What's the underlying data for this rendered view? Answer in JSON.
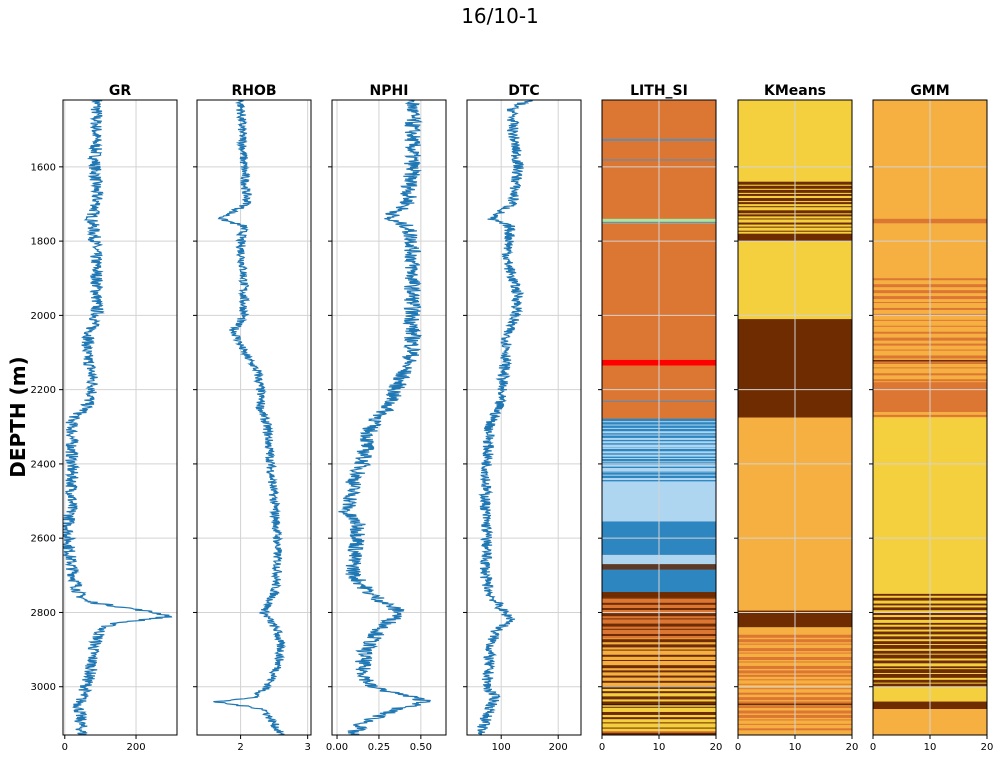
{
  "figure": {
    "title": "16/10-1",
    "ylabel": "DEPTH (m)"
  },
  "chart_data": {
    "type": "well-log",
    "title": "16/10-1",
    "ylabel": "DEPTH (m)",
    "ylim": [
      3130,
      1420
    ],
    "yticks": [
      1600,
      1800,
      2000,
      2200,
      2400,
      2600,
      2800,
      3000
    ],
    "grid": true,
    "curve_color": "#1f77b4",
    "tracks": [
      {
        "kind": "curve",
        "title": "GR",
        "xlim": [
          -5,
          315
        ],
        "xticks": [
          0,
          200
        ],
        "xtick_labels": [
          "0",
          "200"
        ],
        "profile": [
          [
            1420,
            90
          ],
          [
            1500,
            88
          ],
          [
            1600,
            85
          ],
          [
            1700,
            90
          ],
          [
            1740,
            75
          ],
          [
            1760,
            80
          ],
          [
            1800,
            85
          ],
          [
            1900,
            90
          ],
          [
            2000,
            90
          ],
          [
            2050,
            70
          ],
          [
            2100,
            60
          ],
          [
            2150,
            75
          ],
          [
            2200,
            80
          ],
          [
            2250,
            60
          ],
          [
            2280,
            20
          ],
          [
            2300,
            20
          ],
          [
            2400,
            20
          ],
          [
            2500,
            20
          ],
          [
            2540,
            15
          ],
          [
            2560,
            10
          ],
          [
            2600,
            10
          ],
          [
            2650,
            15
          ],
          [
            2700,
            25
          ],
          [
            2750,
            40
          ],
          [
            2770,
            60
          ],
          [
            2790,
            190
          ],
          [
            2800,
            250
          ],
          [
            2810,
            300
          ],
          [
            2820,
            220
          ],
          [
            2830,
            130
          ],
          [
            2850,
            100
          ],
          [
            2900,
            80
          ],
          [
            2950,
            75
          ],
          [
            3000,
            60
          ],
          [
            3050,
            40
          ],
          [
            3100,
            45
          ],
          [
            3130,
            50
          ]
        ],
        "noise": 18
      },
      {
        "kind": "curve",
        "title": "RHOB",
        "xlim": [
          1.35,
          3.05
        ],
        "xticks": [
          2,
          3
        ],
        "xtick_labels": [
          "2",
          "3"
        ],
        "profile": [
          [
            1420,
            2.0
          ],
          [
            1600,
            2.05
          ],
          [
            1700,
            2.1
          ],
          [
            1740,
            1.7
          ],
          [
            1760,
            2.05
          ],
          [
            1800,
            2.0
          ],
          [
            1900,
            2.05
          ],
          [
            2000,
            2.05
          ],
          [
            2040,
            1.9
          ],
          [
            2100,
            2.05
          ],
          [
            2150,
            2.25
          ],
          [
            2200,
            2.3
          ],
          [
            2250,
            2.3
          ],
          [
            2300,
            2.4
          ],
          [
            2400,
            2.45
          ],
          [
            2500,
            2.5
          ],
          [
            2600,
            2.55
          ],
          [
            2700,
            2.55
          ],
          [
            2750,
            2.5
          ],
          [
            2800,
            2.35
          ],
          [
            2850,
            2.55
          ],
          [
            2900,
            2.6
          ],
          [
            2950,
            2.55
          ],
          [
            3000,
            2.4
          ],
          [
            3030,
            2.2
          ],
          [
            3040,
            1.6
          ],
          [
            3060,
            2.35
          ],
          [
            3100,
            2.5
          ],
          [
            3130,
            2.6
          ]
        ],
        "noise": 0.07
      },
      {
        "kind": "curve",
        "title": "NPHI",
        "xlim": [
          -0.03,
          0.65
        ],
        "xticks": [
          0.0,
          0.25,
          0.5
        ],
        "xtick_labels": [
          "0.00",
          "0.25",
          "0.50"
        ],
        "profile": [
          [
            1420,
            0.45
          ],
          [
            1600,
            0.45
          ],
          [
            1700,
            0.42
          ],
          [
            1740,
            0.3
          ],
          [
            1760,
            0.42
          ],
          [
            1800,
            0.45
          ],
          [
            1900,
            0.45
          ],
          [
            2000,
            0.45
          ],
          [
            2100,
            0.45
          ],
          [
            2150,
            0.4
          ],
          [
            2200,
            0.35
          ],
          [
            2250,
            0.3
          ],
          [
            2300,
            0.2
          ],
          [
            2400,
            0.15
          ],
          [
            2450,
            0.1
          ],
          [
            2500,
            0.08
          ],
          [
            2530,
            0.05
          ],
          [
            2560,
            0.12
          ],
          [
            2600,
            0.13
          ],
          [
            2650,
            0.1
          ],
          [
            2700,
            0.1
          ],
          [
            2750,
            0.2
          ],
          [
            2800,
            0.38
          ],
          [
            2830,
            0.3
          ],
          [
            2850,
            0.25
          ],
          [
            2900,
            0.17
          ],
          [
            2950,
            0.15
          ],
          [
            3000,
            0.2
          ],
          [
            3040,
            0.55
          ],
          [
            3060,
            0.35
          ],
          [
            3100,
            0.15
          ],
          [
            3130,
            0.08
          ]
        ],
        "noise": 0.05
      },
      {
        "kind": "curve",
        "title": "DTC",
        "xlim": [
          40,
          240
        ],
        "xticks": [
          100,
          200
        ],
        "xtick_labels": [
          "100",
          "200"
        ],
        "profile": [
          [
            1420,
            150
          ],
          [
            1440,
            120
          ],
          [
            1500,
            120
          ],
          [
            1600,
            130
          ],
          [
            1700,
            120
          ],
          [
            1740,
            80
          ],
          [
            1760,
            115
          ],
          [
            1800,
            115
          ],
          [
            1850,
            110
          ],
          [
            1900,
            120
          ],
          [
            1950,
            130
          ],
          [
            2000,
            125
          ],
          [
            2050,
            110
          ],
          [
            2100,
            110
          ],
          [
            2150,
            105
          ],
          [
            2200,
            100
          ],
          [
            2250,
            95
          ],
          [
            2280,
            85
          ],
          [
            2300,
            80
          ],
          [
            2400,
            75
          ],
          [
            2500,
            72
          ],
          [
            2600,
            75
          ],
          [
            2700,
            72
          ],
          [
            2750,
            80
          ],
          [
            2800,
            105
          ],
          [
            2820,
            120
          ],
          [
            2850,
            90
          ],
          [
            2900,
            80
          ],
          [
            3000,
            75
          ],
          [
            3030,
            90
          ],
          [
            3060,
            80
          ],
          [
            3100,
            70
          ],
          [
            3130,
            60
          ]
        ],
        "noise": 10
      },
      {
        "kind": "facies",
        "title": "LITH_SI",
        "xlim": [
          0,
          20
        ],
        "xticks": [
          0,
          10,
          20
        ],
        "xtick_labels": [
          "0",
          "10",
          "20"
        ],
        "background": "#dc7633",
        "bands": [
          [
            1525,
            1530,
            "#5b8db8"
          ],
          [
            1580,
            1583,
            "#5b8db8"
          ],
          [
            1740,
            1752,
            "#a8e6a1"
          ],
          [
            1748,
            1751,
            "#5b8db8"
          ],
          [
            2120,
            2135,
            "#ff0000"
          ],
          [
            2230,
            2233,
            "#5b8db8"
          ],
          [
            2278,
            2285,
            "#2e86c1"
          ],
          [
            2285,
            2450,
            "#2e86c1"
          ],
          [
            2450,
            2555,
            "#aed6f1"
          ],
          [
            2555,
            2645,
            "#2e86c1"
          ],
          [
            2645,
            2670,
            "#aed6f1"
          ],
          [
            2670,
            2685,
            "#5b3a29"
          ],
          [
            2685,
            2745,
            "#2e86c1"
          ],
          [
            2745,
            2760,
            "#6e2c00"
          ],
          [
            2760,
            2800,
            "#dc7633"
          ],
          [
            2800,
            2870,
            "#dc7633"
          ],
          [
            2870,
            3000,
            "#f5b041"
          ],
          [
            3000,
            3040,
            "#f4d03f"
          ],
          [
            3040,
            3050,
            "#000000"
          ],
          [
            3050,
            3120,
            "#f4d03f"
          ],
          [
            3120,
            3130,
            "#dc7633"
          ]
        ],
        "stripes": {
          "from": 2285,
          "to": 2555,
          "color": "#aed6f1",
          "step": 9
        },
        "stripes2": {
          "from": 2760,
          "to": 3130,
          "color": "#6e2c00",
          "step": 14
        }
      },
      {
        "kind": "facies",
        "title": "KMeans",
        "xlim": [
          0,
          20
        ],
        "xticks": [
          0,
          10,
          20
        ],
        "xtick_labels": [
          "0",
          "10",
          "20"
        ],
        "background": "#f4d03f",
        "bands": [
          [
            1780,
            1800,
            "#6e2c00"
          ],
          [
            2010,
            2275,
            "#6e2c00"
          ],
          [
            2275,
            2795,
            "#f5b041"
          ],
          [
            2795,
            2840,
            "#6e2c00"
          ],
          [
            2840,
            3130,
            "#f5b041"
          ],
          [
            3040,
            3050,
            "#6e2c00"
          ]
        ],
        "stripes": {
          "from": 1640,
          "to": 1790,
          "color": "#6e2c00",
          "step": 11
        },
        "stripes2": {
          "from": 2860,
          "to": 3120,
          "color": "#dc7633",
          "step": 12
        }
      },
      {
        "kind": "facies",
        "title": "GMM",
        "xlim": [
          0,
          20
        ],
        "xticks": [
          0,
          10,
          20
        ],
        "xtick_labels": [
          "0",
          "10",
          "20"
        ],
        "background": "#f5b041",
        "bands": [
          [
            1740,
            1752,
            "#dc7633"
          ],
          [
            2120,
            2130,
            "#6e2c00"
          ],
          [
            2180,
            2260,
            "#dc7633"
          ],
          [
            2275,
            2750,
            "#f4d03f"
          ],
          [
            2750,
            3000,
            "#6e2c00"
          ],
          [
            3000,
            3040,
            "#f4d03f"
          ],
          [
            3040,
            3060,
            "#6e2c00"
          ],
          [
            3060,
            3130,
            "#f5b041"
          ]
        ],
        "stripes": {
          "from": 1900,
          "to": 2280,
          "color": "#dc7633",
          "step": 16
        },
        "stripes2": {
          "from": 2755,
          "to": 3000,
          "color": "#f4d03f",
          "step": 13
        }
      }
    ]
  }
}
